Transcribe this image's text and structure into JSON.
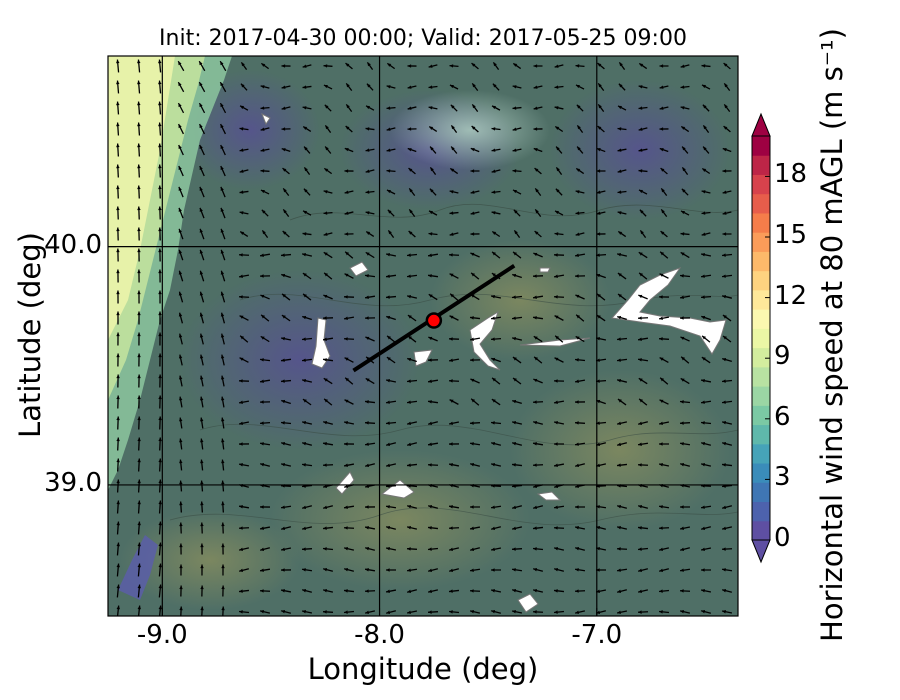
{
  "chart_data": {
    "type": "map",
    "title": "Init: 2017-04-30 00:00; Valid: 2017-05-25 09:00",
    "xlabel": "Longitude (deg)",
    "ylabel": "Latitude (deg)",
    "xlim": [
      -9.25,
      -6.35
    ],
    "ylim": [
      38.45,
      40.8
    ],
    "x_ticks": [
      {
        "value": -9.0,
        "label": "-9.0"
      },
      {
        "value": -8.0,
        "label": "-8.0"
      },
      {
        "value": -7.0,
        "label": "-7.0"
      }
    ],
    "y_ticks": [
      {
        "value": 40.0,
        "label": "40.0"
      },
      {
        "value": 39.0,
        "label": "39.0"
      }
    ],
    "grid": true,
    "colorbar": {
      "label": "Horizontal wind speed at 80 mAGL",
      "units": "(m s⁻¹)",
      "min": 0,
      "max": 20,
      "extend": "both",
      "ticks": [
        {
          "value": 0,
          "label": "0"
        },
        {
          "value": 3,
          "label": "3"
        },
        {
          "value": 6,
          "label": "6"
        },
        {
          "value": 9,
          "label": "9"
        },
        {
          "value": 12,
          "label": "12"
        },
        {
          "value": 15,
          "label": "15"
        },
        {
          "value": 18,
          "label": "18"
        }
      ],
      "colors": [
        "#5e4fa2",
        "#4d62ad",
        "#3f76b4",
        "#3a8cba",
        "#46a3b8",
        "#5fb8ab",
        "#7bc9a4",
        "#9bd6a4",
        "#b8e2a2",
        "#d3ed9e",
        "#ebf7a5",
        "#fbf8b0",
        "#fee89a",
        "#fed380",
        "#fdb96a",
        "#fb9c59",
        "#f57d4a",
        "#e75d4b",
        "#d7424c",
        "#bd2547",
        "#9e0142"
      ],
      "under_color": "#5e4fa2",
      "over_color": "#9e0142"
    },
    "transect": {
      "start": [
        -8.12,
        39.48
      ],
      "end": [
        -7.38,
        39.92
      ]
    },
    "site_marker": {
      "lon": -7.75,
      "lat": 39.69,
      "color": "#ff0000"
    }
  }
}
